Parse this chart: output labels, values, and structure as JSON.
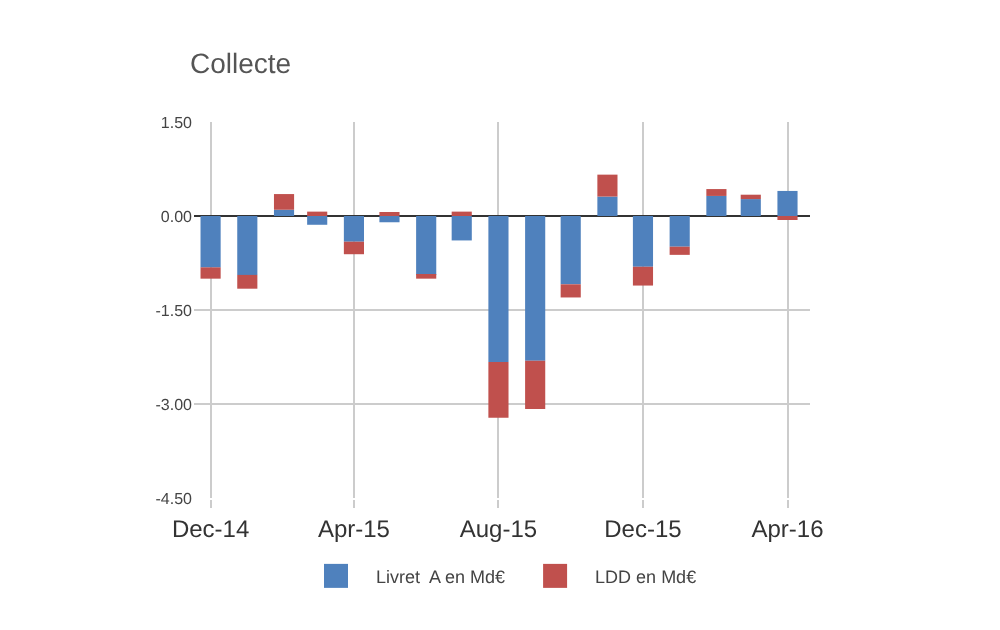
{
  "chart_data": {
    "type": "bar",
    "title": "Collecte",
    "stacked": true,
    "x": [
      "2014-12",
      "2015-01",
      "2015-02",
      "2015-03",
      "2015-04",
      "2015-05",
      "2015-06",
      "2015-07",
      "2015-08",
      "2015-09",
      "2015-10",
      "2015-11",
      "2015-12",
      "2016-01",
      "2016-02",
      "2016-03",
      "2016-04"
    ],
    "series": [
      {
        "name": "Livret  A en Md€",
        "color": "#4f81bd",
        "values": [
          -0.82,
          -0.94,
          0.1,
          -0.14,
          -0.41,
          -0.1,
          -0.94,
          -0.39,
          -2.33,
          -2.31,
          -1.09,
          0.31,
          -0.81,
          -0.49,
          0.32,
          0.27,
          0.4
        ]
      },
      {
        "name": "LDD en Md€",
        "color": "#c0504d",
        "values": [
          -0.18,
          -0.22,
          0.25,
          0.07,
          -0.2,
          0.04,
          -0.06,
          0.07,
          -0.89,
          -0.77,
          -0.21,
          0.35,
          -0.3,
          -0.13,
          0.11,
          0.07,
          -0.05
        ]
      }
    ],
    "xlim": [
      "2014-11-17",
      "2016-04-20"
    ],
    "xticks": [
      {
        "value": "2014-12",
        "label": "Dec-14"
      },
      {
        "value": "2015-04",
        "label": "Apr-15"
      },
      {
        "value": "2015-08",
        "label": "Aug-15"
      },
      {
        "value": "2015-12",
        "label": "Dec-15"
      },
      {
        "value": "2016-04",
        "label": "Apr-16"
      }
    ],
    "ylim": [
      -4.5,
      1.5
    ],
    "yticks": [
      {
        "value": -4.5,
        "label": "-4.50"
      },
      {
        "value": -3,
        "label": "-3.00"
      },
      {
        "value": -1.5,
        "label": "-1.50"
      },
      {
        "value": 0,
        "label": "0.00"
      },
      {
        "value": 1.5,
        "label": "1.50"
      }
    ],
    "grid": true,
    "legend": "bottom"
  }
}
